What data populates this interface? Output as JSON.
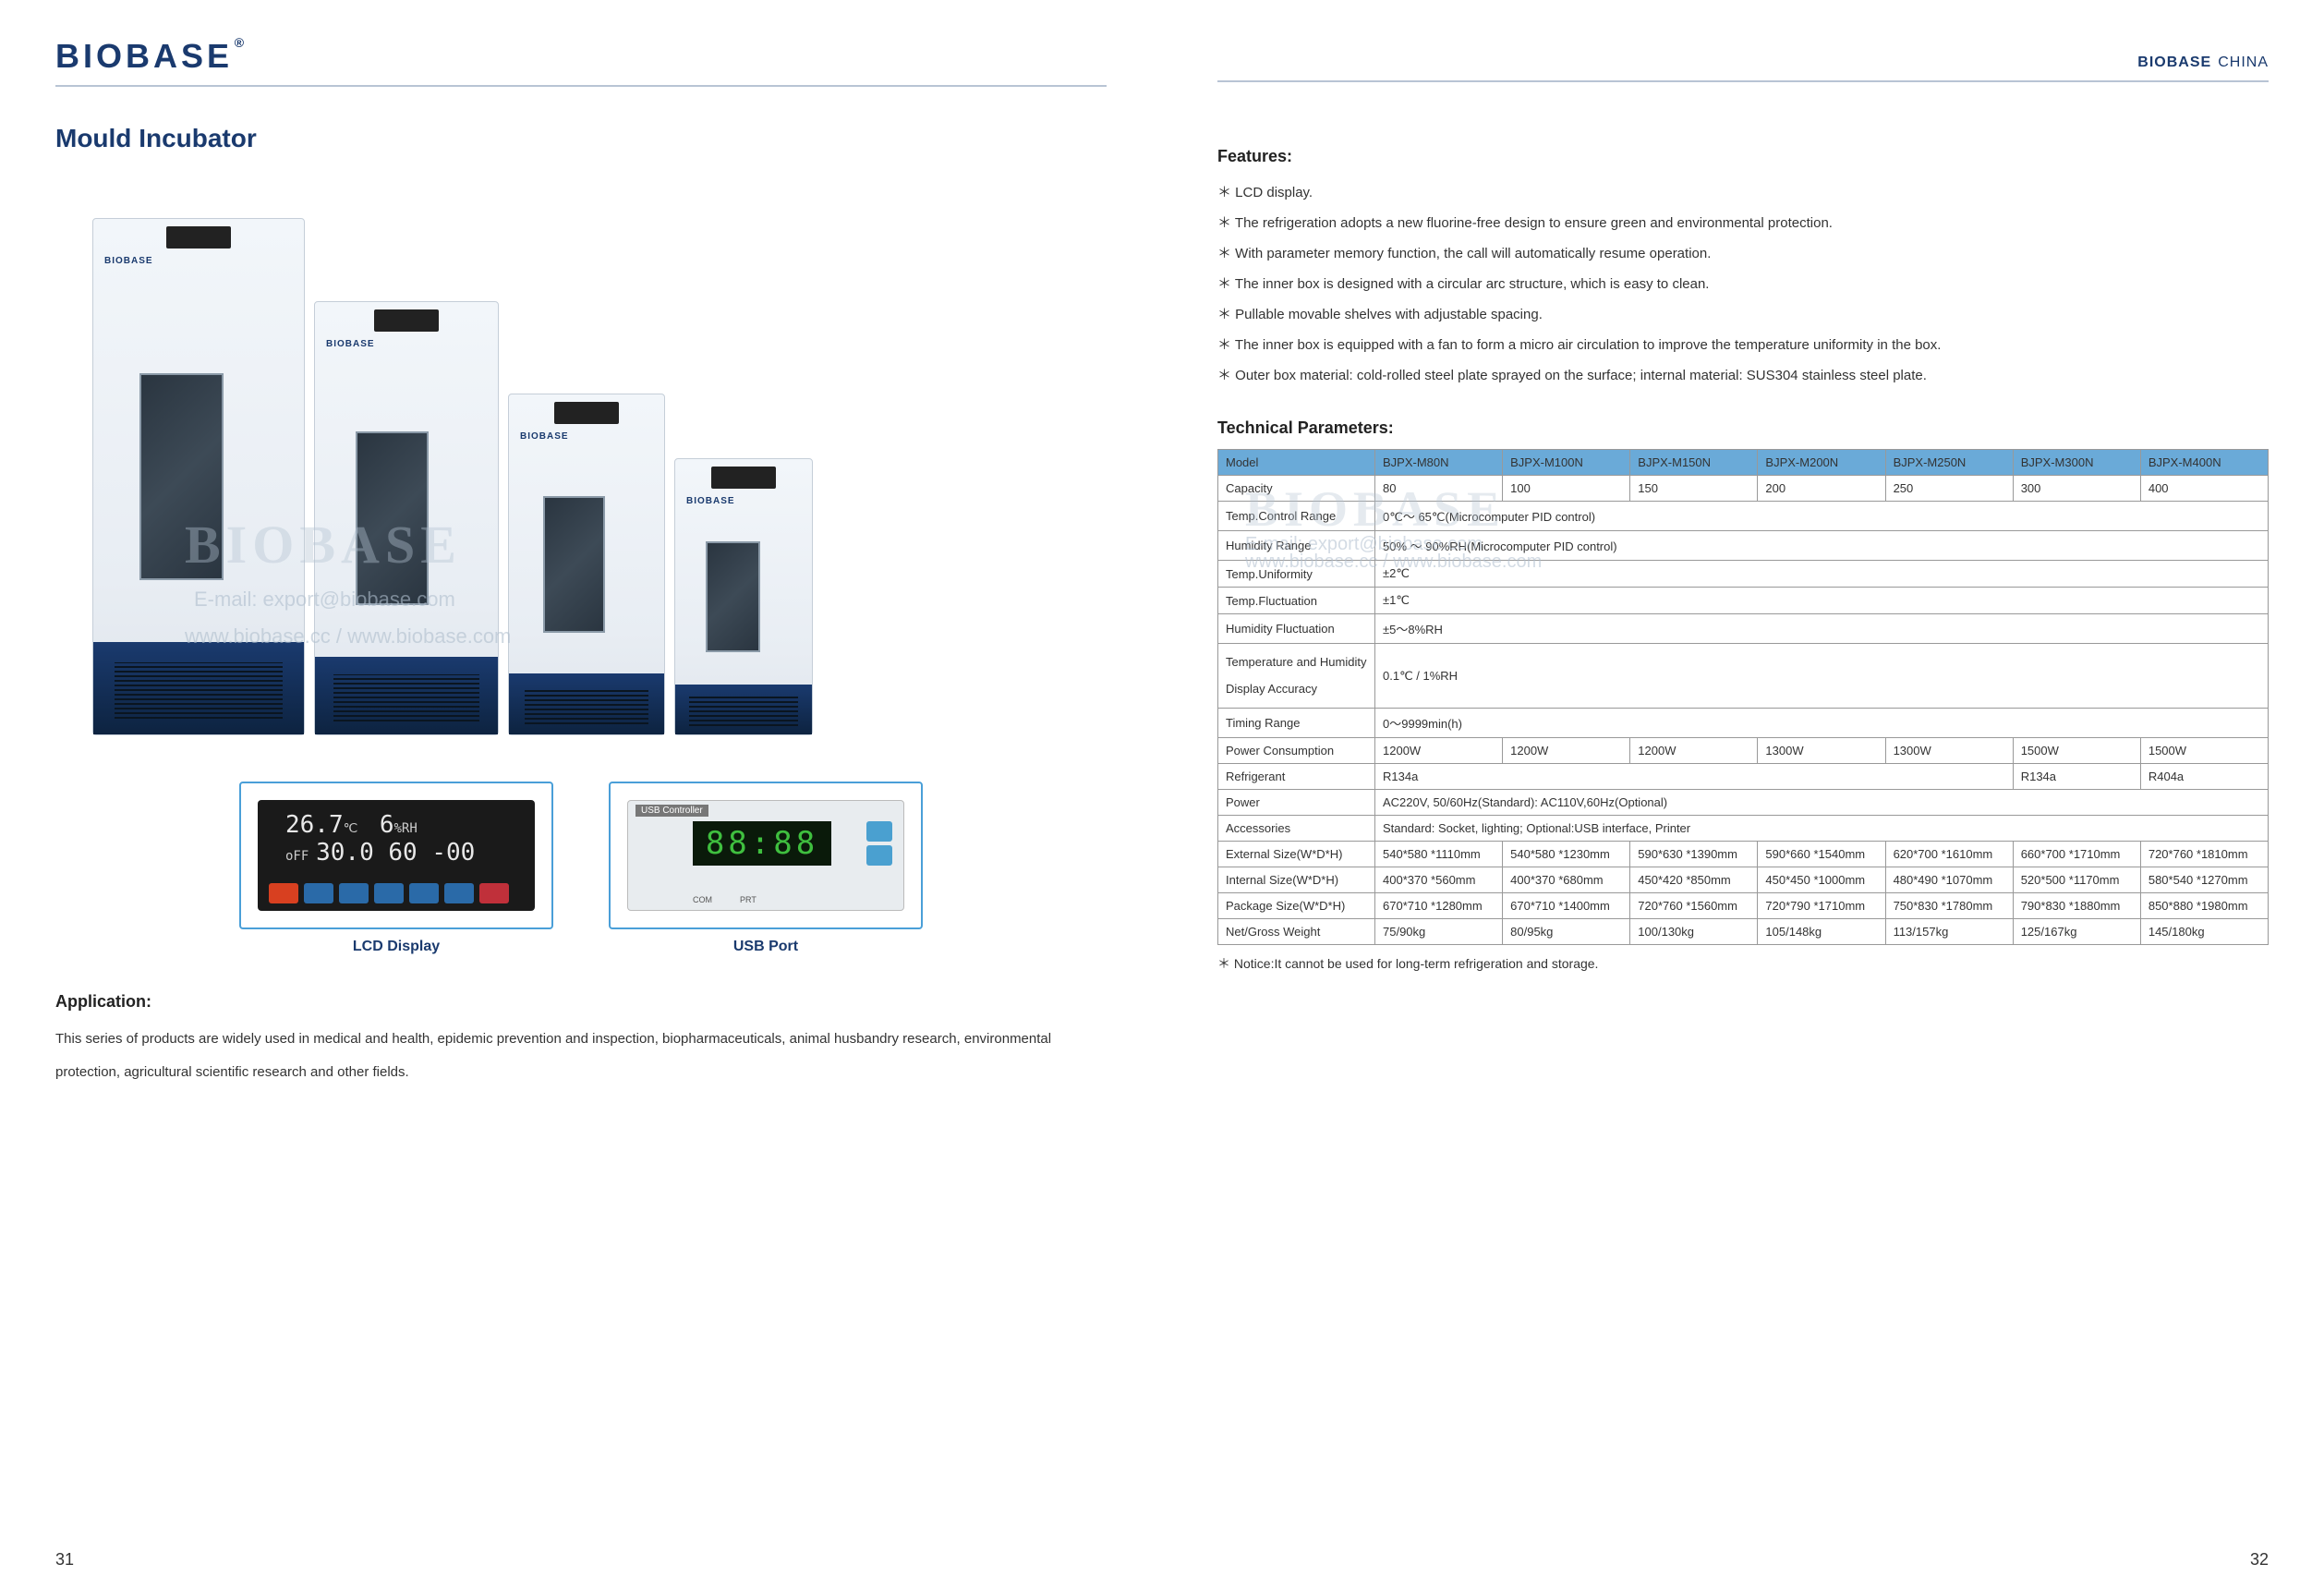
{
  "brand": "BIOBASE",
  "brand_suffix": "®",
  "header_right_brand": "BIOBASE",
  "header_right_loc": "CHINA",
  "title": "Mould Incubator",
  "lcd": {
    "temp": "26.7",
    "temp_unit": "℃",
    "hum": "6",
    "hum_unit": "%RH",
    "off": "oFF",
    "set_temp": "30.0",
    "set_hum": "60",
    "set_time": "-00"
  },
  "usb": {
    "label": "USB Controller",
    "digits": "88:88",
    "sub1": "COM",
    "sub2": "PRT"
  },
  "captions": {
    "lcd": "LCD Display",
    "usb": "USB Port"
  },
  "app_h": "Application:",
  "app_text": "This series of products are widely used in medical and health, epidemic prevention and inspection, biopharmaceuticals, animal husbandry research, environmental protection, agricultural scientific research and other fields.",
  "features_h": "Features:",
  "features": [
    "LCD display.",
    "The refrigeration adopts a new fluorine-free design to ensure green and environmental protection.",
    "With parameter memory function, the call will automatically resume operation.",
    "The inner box is designed with a circular arc structure, which is easy to clean.",
    "Pullable movable shelves with adjustable spacing.",
    "The inner box is equipped with a fan to form a micro air circulation to improve the temperature uniformity in the box.",
    "Outer box material: cold-rolled steel plate sprayed on the surface; internal material: SUS304 stainless steel plate."
  ],
  "params_h": "Technical Parameters:",
  "models": [
    "BJPX-M80N",
    "BJPX-M100N",
    "BJPX-M150N",
    "BJPX-M200N",
    "BJPX-M250N",
    "BJPX-M300N",
    "BJPX-M400N"
  ],
  "rows": {
    "model": "Model",
    "capacity": {
      "label": "Capacity",
      "vals": [
        "80",
        "100",
        "150",
        "200",
        "250",
        "300",
        "400"
      ]
    },
    "temp_range": {
      "label": "Temp.Control Range",
      "val": "0℃～ 65℃(Microcomputer PID control)"
    },
    "hum_range": {
      "label": "Humidity Range",
      "val": "50% ～ 90%RH(Microcomputer PID control)"
    },
    "temp_unif": {
      "label": "Temp.Uniformity",
      "val": "±2℃"
    },
    "temp_fluc": {
      "label": "Temp.Fluctuation",
      "val": "±1℃"
    },
    "hum_fluc": {
      "label": "Humidity Fluctuation",
      "val": "±5～8%RH"
    },
    "disp_acc": {
      "label": "Temperature and Humidity Display Accuracy",
      "val": "0.1℃ / 1%RH"
    },
    "timing": {
      "label": "Timing Range",
      "val": "0～9999min(h)"
    },
    "power_cons": {
      "label": "Power Consumption",
      "vals": [
        "1200W",
        "1200W",
        "1200W",
        "1300W",
        "1300W",
        "1500W",
        "1500W"
      ]
    },
    "refrig": {
      "label": "Refrigerant",
      "v1": "R134a",
      "v2": "R134a",
      "v3": "R404a"
    },
    "power": {
      "label": "Power",
      "val": "AC220V, 50/60Hz(Standard): AC110V,60Hz(Optional)"
    },
    "acc": {
      "label": "Accessories",
      "val": "Standard: Socket, lighting; Optional:USB interface, Printer"
    },
    "ext": {
      "label": "External Size(W*D*H)",
      "vals": [
        "540*580 *1110mm",
        "540*580 *1230mm",
        "590*630 *1390mm",
        "590*660 *1540mm",
        "620*700 *1610mm",
        "660*700 *1710mm",
        "720*760 *1810mm"
      ]
    },
    "int": {
      "label": "Internal Size(W*D*H)",
      "vals": [
        "400*370 *560mm",
        "400*370 *680mm",
        "450*420 *850mm",
        "450*450 *1000mm",
        "480*490 *1070mm",
        "520*500 *1170mm",
        "580*540 *1270mm"
      ]
    },
    "pkg": {
      "label": "Package Size(W*D*H)",
      "vals": [
        "670*710 *1280mm",
        "670*710 *1400mm",
        "720*760 *1560mm",
        "720*790 *1710mm",
        "750*830 *1780mm",
        "790*830 *1880mm",
        "850*880 *1980mm"
      ]
    },
    "weight": {
      "label": "Net/Gross Weight",
      "vals": [
        "75/90kg",
        "80/95kg",
        "100/130kg",
        "105/148kg",
        "113/157kg",
        "125/167kg",
        "145/180kg"
      ]
    }
  },
  "notice": "Notice:It cannot be used for long-term refrigeration and storage.",
  "watermark_big": "BIOBASE",
  "watermark_email": "E-mail: export@biobase.com",
  "watermark_url": "www.biobase.cc / www.biobase.com",
  "pg_left": "31",
  "pg_right": "32",
  "colors": {
    "brand_blue": "#1a3a6e",
    "header_rule": "#b8c4d4",
    "table_header": "#6aaad8",
    "table_border": "#999999",
    "watermark": "rgba(180,195,210,0.4)"
  }
}
